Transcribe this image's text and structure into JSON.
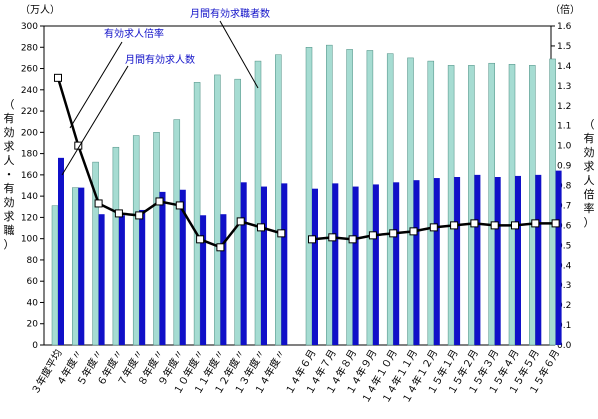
{
  "chart_data": {
    "type": "bar",
    "left_unit": "（万人）",
    "right_unit": "（倍）",
    "left_axis_label": "（有効求人・有効求職）",
    "right_axis_label": "（有効求人倍率）",
    "ylim_left": [
      0,
      300
    ],
    "ylim_right": [
      0,
      1.6
    ],
    "left_ticks": [
      0,
      20,
      40,
      60,
      80,
      100,
      120,
      140,
      160,
      180,
      200,
      220,
      240,
      260,
      280,
      300
    ],
    "right_ticks": [
      "0.0",
      "0.1",
      "0.2",
      "0.3",
      "0.4",
      "0.5",
      "0.6",
      "0.7",
      "0.8",
      "0.9",
      "1.0",
      "1.1",
      "1.2",
      "1.3",
      "1.4",
      "1.5",
      "1.6"
    ],
    "groups": [
      {
        "categories": [
          "３年度平均",
          "４年度〃",
          "５年度〃",
          "６年度〃",
          "７年度〃",
          "８年度〃",
          "９年度〃",
          "１０年度〃",
          "１１年度〃",
          "１２年度〃",
          "１３年度〃",
          "１４年度〃"
        ],
        "job_seekers": [
          131,
          148,
          172,
          186,
          197,
          200,
          212,
          247,
          254,
          250,
          267,
          273
        ],
        "job_openings": [
          176,
          148,
          123,
          122,
          127,
          144,
          146,
          122,
          123,
          153,
          149,
          152
        ],
        "ratio": [
          1.34,
          1.0,
          0.71,
          0.66,
          0.65,
          0.72,
          0.7,
          0.53,
          0.49,
          0.62,
          0.59,
          0.56
        ]
      },
      {
        "categories": [
          "１４年６月",
          "１４年７月",
          "１４年８月",
          "１４年９月",
          "１４年１０月",
          "１４年１１月",
          "１４年１２月",
          "１５年１月",
          "１５年２月",
          "１５年３月",
          "１５年４月",
          "１５年５月",
          "１５年６月"
        ],
        "job_seekers": [
          280,
          282,
          278,
          277,
          274,
          270,
          267,
          263,
          263,
          265,
          264,
          263,
          269
        ],
        "job_openings": [
          147,
          152,
          149,
          151,
          153,
          155,
          157,
          158,
          160,
          158,
          159,
          160,
          164
        ],
        "ratio": [
          0.53,
          0.54,
          0.53,
          0.55,
          0.56,
          0.57,
          0.59,
          0.6,
          0.61,
          0.6,
          0.6,
          0.61,
          0.61
        ]
      }
    ],
    "annotations": {
      "ratio_label": "有効求人倍率",
      "openings_label": "月間有効求人数",
      "seekers_label": "月間有効求職者数"
    },
    "colors": {
      "job_seekers": "#a6dcd2",
      "job_openings": "#1010c8",
      "ratio_line": "#000000",
      "annotation_text": "#1010c8"
    }
  }
}
